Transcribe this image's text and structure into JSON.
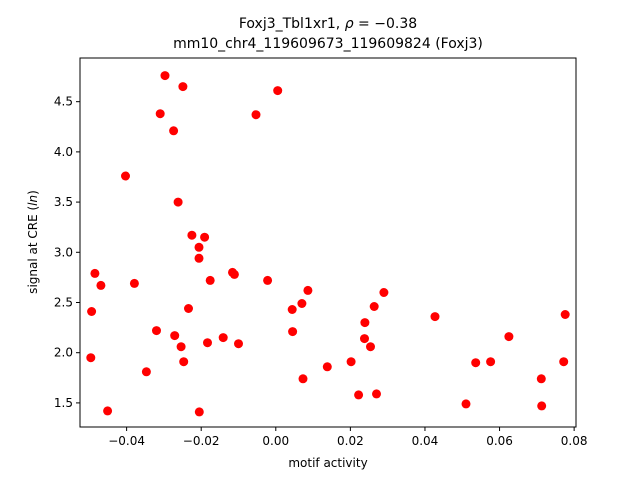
{
  "chart_data": {
    "type": "scatter",
    "title_line1": "Foxj3_Tbl1xr1, ρ = −0.38",
    "title_line2": "mm10_chr4_119609673_119609824 (Foxj3)",
    "xlabel": "motif activity",
    "ylabel": "signal at CRE (ln)",
    "xlim": [
      -0.0525,
      0.0805
    ],
    "ylim": [
      1.26,
      4.935
    ],
    "xticks": [
      -0.04,
      -0.02,
      0.0,
      0.02,
      0.04,
      0.06,
      0.08
    ],
    "xtick_labels": [
      "−0.04",
      "−0.02",
      "0.00",
      "0.02",
      "0.04",
      "0.06",
      "0.08"
    ],
    "yticks": [
      1.5,
      2.0,
      2.5,
      3.0,
      3.5,
      4.0,
      4.5
    ],
    "ytick_labels": [
      "1.5",
      "2.0",
      "2.5",
      "3.0",
      "3.5",
      "4.0",
      "4.5"
    ],
    "marker_color": "#ff0000",
    "grid": false,
    "x": [
      -0.0297,
      -0.0249,
      -0.031,
      0.0005,
      -0.0053,
      -0.0274,
      -0.0403,
      -0.0262,
      -0.0225,
      -0.0191,
      -0.0206,
      -0.0206,
      -0.0485,
      -0.0116,
      -0.0111,
      -0.0022,
      -0.0176,
      -0.0469,
      -0.0379,
      0.0086,
      0.029,
      -0.0234,
      -0.0494,
      0.007,
      0.0264,
      0.0044,
      0.0427,
      0.0776,
      0.0239,
      -0.032,
      0.0045,
      -0.0271,
      -0.0141,
      0.0238,
      0.0625,
      -0.0183,
      -0.01,
      -0.0254,
      0.0254,
      -0.0496,
      0.0576,
      0.0536,
      -0.0247,
      0.0772,
      0.0202,
      0.0138,
      -0.0347,
      0.0073,
      0.0712,
      0.0222,
      0.027,
      -0.0451,
      0.051,
      0.0713,
      -0.0205
    ],
    "y": [
      4.76,
      4.65,
      4.38,
      4.61,
      4.37,
      4.21,
      3.76,
      3.5,
      3.17,
      3.15,
      3.05,
      2.94,
      2.79,
      2.8,
      2.78,
      2.72,
      2.72,
      2.67,
      2.69,
      2.62,
      2.6,
      2.44,
      2.41,
      2.49,
      2.46,
      2.43,
      2.36,
      2.38,
      2.3,
      2.22,
      2.21,
      2.17,
      2.15,
      2.14,
      2.16,
      2.1,
      2.09,
      2.06,
      2.06,
      1.95,
      1.91,
      1.9,
      1.91,
      1.91,
      1.91,
      1.86,
      1.81,
      1.74,
      1.74,
      1.58,
      1.59,
      1.42,
      1.49,
      1.47,
      1.41
    ]
  }
}
